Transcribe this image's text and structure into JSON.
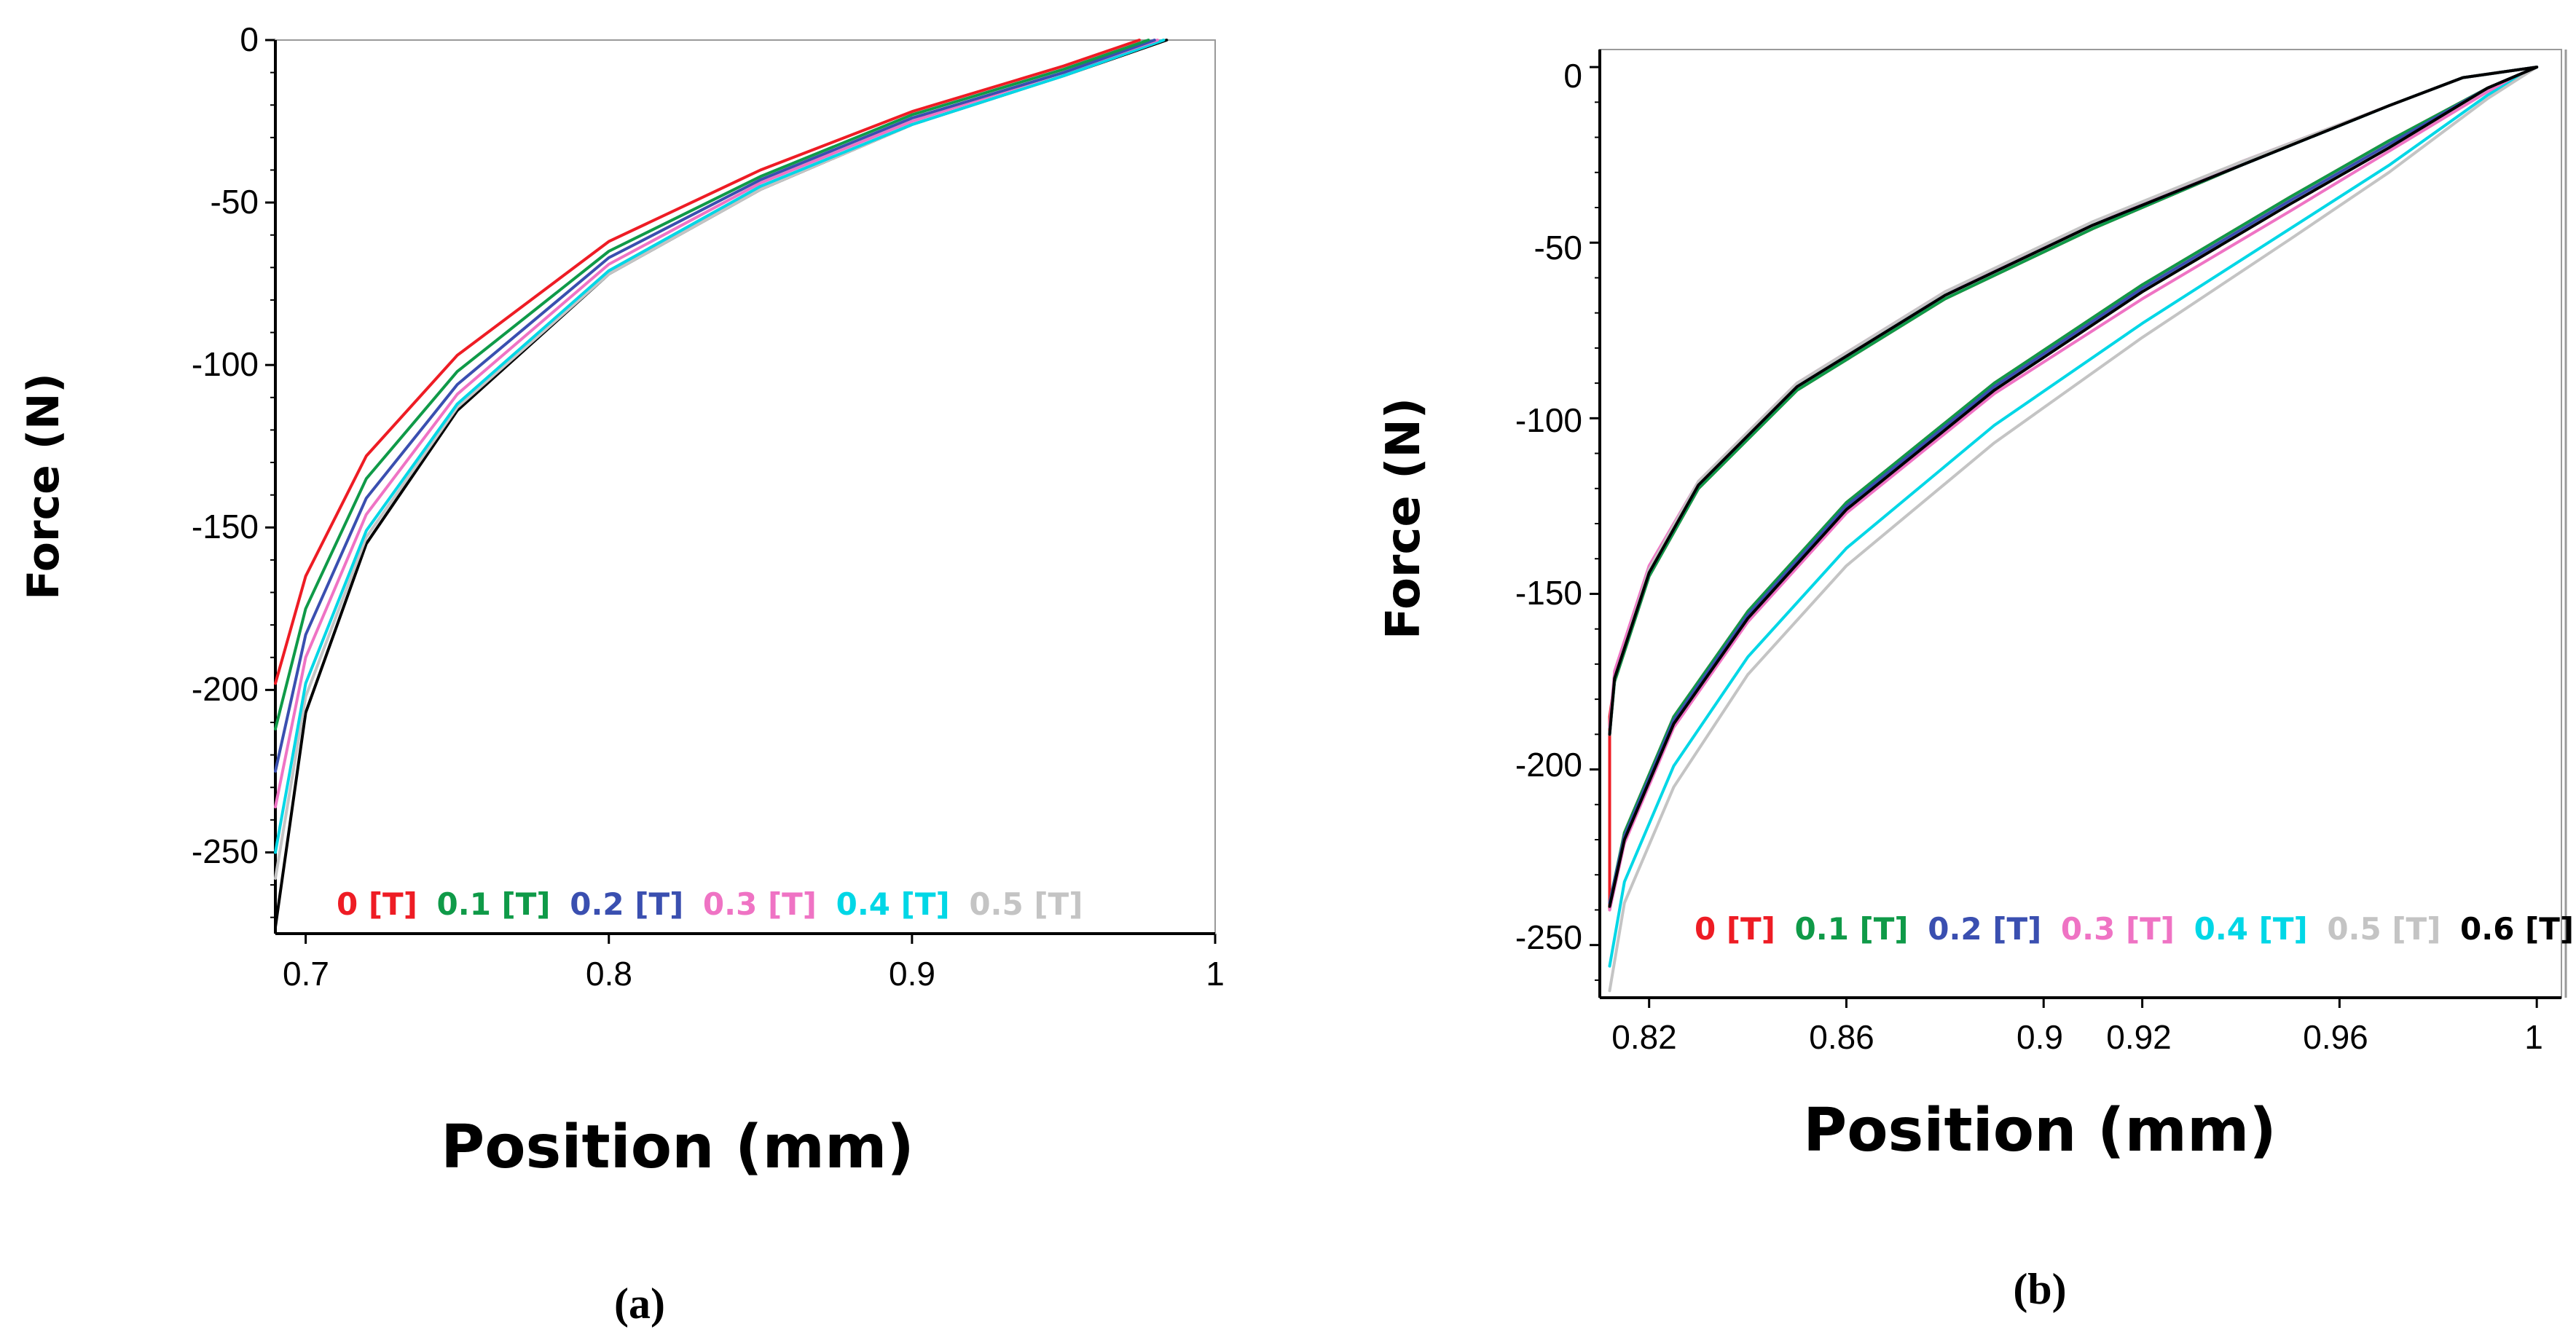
{
  "chart_data": [
    {
      "type": "line",
      "caption": "(a)",
      "xlabel": "Position (mm)",
      "ylabel": "Force (N)",
      "xlim": [
        0.69,
        1.0
      ],
      "ylim": [
        -275,
        0
      ],
      "xticks": [
        0.7,
        0.8,
        0.9,
        1.0
      ],
      "xtick_labels": [
        "0.7",
        "0.8",
        "0.9",
        "1"
      ],
      "yticks": [
        0,
        -50,
        -100,
        -150,
        -200,
        -250
      ],
      "ytick_labels": [
        "0",
        "-50",
        "-100",
        "-150",
        "-200",
        "-250"
      ],
      "legend_placement": "bottom",
      "series": [
        {
          "name": "0 [T]",
          "color": "#ee1c24",
          "x": [
            0.69,
            0.7,
            0.72,
            0.75,
            0.8,
            0.85,
            0.9,
            0.95,
            0.975
          ],
          "y": [
            -198,
            -165,
            -128,
            -97,
            -62,
            -40,
            -22,
            -8,
            0
          ]
        },
        {
          "name": "0.1 [T]",
          "color": "#0f9a48",
          "x": [
            0.69,
            0.7,
            0.72,
            0.75,
            0.8,
            0.85,
            0.9,
            0.95,
            0.978
          ],
          "y": [
            -212,
            -175,
            -135,
            -102,
            -65,
            -42,
            -23,
            -9,
            0
          ]
        },
        {
          "name": "0.2 [T]",
          "color": "#3a4fb0",
          "x": [
            0.69,
            0.7,
            0.72,
            0.75,
            0.8,
            0.85,
            0.9,
            0.95,
            0.98
          ],
          "y": [
            -225,
            -183,
            -141,
            -106,
            -67,
            -43,
            -24,
            -10,
            0
          ]
        },
        {
          "name": "0.3 [T]",
          "color": "#ef73c4",
          "x": [
            0.69,
            0.7,
            0.72,
            0.75,
            0.8,
            0.85,
            0.9,
            0.95,
            0.981
          ],
          "y": [
            -236,
            -190,
            -146,
            -109,
            -69,
            -44,
            -25,
            -10,
            0
          ]
        },
        {
          "name": "0.4 [T]",
          "color": "#00d7e6",
          "x": [
            0.69,
            0.7,
            0.72,
            0.75,
            0.8,
            0.85,
            0.9,
            0.95,
            0.983
          ],
          "y": [
            -250,
            -198,
            -151,
            -112,
            -71,
            -45,
            -26,
            -11,
            0
          ]
        },
        {
          "name": "0.5 [T]",
          "color": "#c4c4c4",
          "x": [
            0.69,
            0.7,
            0.72,
            0.75,
            0.8,
            0.85,
            0.9,
            0.95,
            0.983
          ],
          "y": [
            -258,
            -202,
            -153,
            -113,
            -72,
            -46,
            -26,
            -11,
            0
          ]
        },
        {
          "name": "",
          "color": "#000000",
          "x": [
            0.69,
            0.7,
            0.72,
            0.75,
            0.8,
            0.85,
            0.9,
            0.95,
            0.984
          ],
          "y": [
            -273,
            -207,
            -155,
            -114,
            -72,
            -46,
            -26,
            -11,
            0
          ]
        }
      ]
    },
    {
      "type": "line",
      "caption": "(b)",
      "xlabel": "Position (mm)",
      "ylabel": "Force (N)",
      "xlim": [
        0.81,
        1.005
      ],
      "ylim": [
        -265,
        5
      ],
      "xticks": [
        0.82,
        0.86,
        0.9,
        0.92,
        0.96,
        1.0
      ],
      "xtick_labels": [
        "0.82",
        "0.86",
        "0.9",
        "0.92",
        "0.96",
        "1"
      ],
      "yticks": [
        0,
        -50,
        -100,
        -150,
        -200,
        -250
      ],
      "ytick_labels": [
        "0",
        "-50",
        "-100",
        "-150",
        "-200",
        "-250"
      ],
      "legend_placement": "bottom",
      "series": [
        {
          "name": "0 [T]",
          "color": "#ee1c24",
          "x": [
            0.812,
            0.812,
            0.813,
            0.82,
            0.83,
            0.85,
            0.88,
            0.91,
            0.94,
            0.97,
            0.985,
            1.0,
            1.0,
            0.99,
            0.97,
            0.95,
            0.92,
            0.89,
            0.86,
            0.84,
            0.825,
            0.815,
            0.812,
            0.812
          ],
          "y": [
            -200,
            -185,
            -175,
            -145,
            -120,
            -92,
            -66,
            -46,
            -28,
            -11,
            -3,
            0,
            0,
            -6,
            -21,
            -37,
            -62,
            -90,
            -124,
            -155,
            -185,
            -218,
            -240,
            -200
          ]
        },
        {
          "name": "0.1 [T]",
          "color": "#0f9a48",
          "x": [
            0.812,
            0.813,
            0.82,
            0.83,
            0.85,
            0.88,
            0.91,
            0.94,
            0.97,
            0.985,
            1.0,
            1.0,
            0.99,
            0.97,
            0.95,
            0.92,
            0.89,
            0.86,
            0.84,
            0.825,
            0.815,
            0.812
          ],
          "y": [
            -190,
            -175,
            -145,
            -120,
            -92,
            -66,
            -46,
            -28,
            -11,
            -3,
            0,
            0,
            -6,
            -21,
            -37,
            -62,
            -90,
            -124,
            -155,
            -185,
            -218,
            -238
          ]
        },
        {
          "name": "0.2 [T]",
          "color": "#3a4fb0",
          "x": [
            0.812,
            0.813,
            0.82,
            0.83,
            0.85,
            0.88,
            0.91,
            0.94,
            0.97,
            0.985,
            1.0,
            1.0,
            0.99,
            0.97,
            0.95,
            0.92,
            0.89,
            0.86,
            0.84,
            0.825,
            0.815,
            0.812
          ],
          "y": [
            -190,
            -174,
            -144,
            -119,
            -91,
            -65,
            -45,
            -28,
            -11,
            -3,
            0,
            0,
            -6,
            -22,
            -38,
            -63,
            -91,
            -125,
            -156,
            -186,
            -219,
            -238
          ]
        },
        {
          "name": "0.3 [T]",
          "color": "#ef73c4",
          "x": [
            0.812,
            0.813,
            0.82,
            0.83,
            0.85,
            0.88,
            0.91,
            0.94,
            0.97,
            0.985,
            1.0,
            1.0,
            0.99,
            0.97,
            0.95,
            0.92,
            0.89,
            0.86,
            0.84,
            0.825,
            0.815,
            0.812
          ],
          "y": [
            -188,
            -172,
            -142,
            -118,
            -90,
            -64,
            -45,
            -27,
            -11,
            -3,
            0,
            0,
            -7,
            -24,
            -41,
            -66,
            -93,
            -127,
            -158,
            -188,
            -221,
            -240
          ]
        },
        {
          "name": "0.4 [T]",
          "color": "#00d7e6",
          "x": [
            0.812,
            0.813,
            0.82,
            0.83,
            0.85,
            0.88,
            0.91,
            0.94,
            0.97,
            0.985,
            1.0,
            1.0,
            0.99,
            0.97,
            0.95,
            0.92,
            0.89,
            0.86,
            0.84,
            0.825,
            0.815,
            0.812
          ],
          "y": [
            -190,
            -174,
            -144,
            -119,
            -91,
            -65,
            -45,
            -28,
            -11,
            -3,
            0,
            0,
            -8,
            -28,
            -46,
            -73,
            -102,
            -137,
            -168,
            -199,
            -232,
            -256
          ]
        },
        {
          "name": "0.5 [T]",
          "color": "#c4c4c4",
          "x": [
            0.812,
            0.813,
            0.82,
            0.83,
            0.85,
            0.88,
            0.91,
            0.94,
            0.97,
            0.985,
            1.0,
            1.0,
            0.99,
            0.97,
            0.95,
            0.92,
            0.89,
            0.86,
            0.84,
            0.825,
            0.815,
            0.812
          ],
          "y": [
            -190,
            -174,
            -143,
            -118,
            -90,
            -64,
            -44,
            -27,
            -11,
            -3,
            0,
            0,
            -9,
            -30,
            -49,
            -77,
            -107,
            -142,
            -173,
            -205,
            -238,
            -263
          ]
        },
        {
          "name": "0.6 [T]",
          "color": "#000000",
          "x": [
            0.812,
            0.813,
            0.82,
            0.83,
            0.85,
            0.88,
            0.91,
            0.94,
            0.97,
            0.985,
            1.0,
            1.0,
            0.99,
            0.97,
            0.95,
            0.92,
            0.89,
            0.86,
            0.84,
            0.825,
            0.815,
            0.812
          ],
          "y": [
            -190,
            -174,
            -144,
            -119,
            -91,
            -65,
            -45,
            -28,
            -11,
            -3,
            0,
            0,
            -6,
            -23,
            -39,
            -64,
            -92,
            -126,
            -157,
            -187,
            -220,
            -239
          ]
        }
      ]
    }
  ]
}
